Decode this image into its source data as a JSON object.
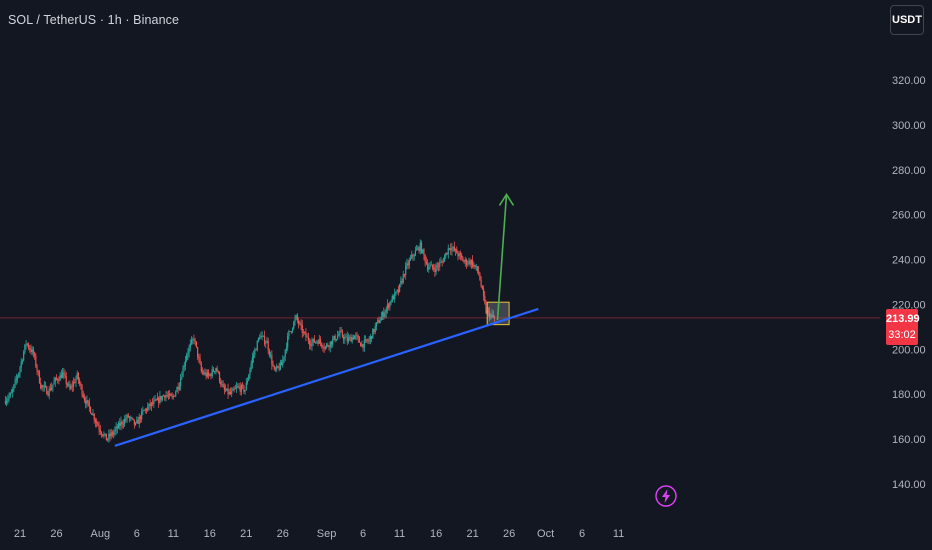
{
  "header": {
    "title": "SOL / TetherUS · 1h · Binance"
  },
  "toolbar": {
    "currency_label": "USDT"
  },
  "colors": {
    "background": "#131722",
    "candle_up": "#26a69a",
    "candle_down": "#ef5350",
    "trendline": "#2962ff",
    "arrow": "#4caf50",
    "zone_border": "#e8c33b",
    "zone_fill": "#9598a1",
    "price_line": "#f23645",
    "lightning": "#e040fb"
  },
  "chart_data": {
    "type": "candlestick",
    "symbol": "SOL / TetherUS",
    "interval": "1h",
    "exchange": "Binance",
    "ylim": [
      125,
      340
    ],
    "y_ticks": [
      "140.00",
      "160.00",
      "180.00",
      "200.00",
      "220.00",
      "240.00",
      "260.00",
      "280.00",
      "300.00",
      "320.00"
    ],
    "x_ticks": [
      {
        "label": "21",
        "date": "2025-07-21"
      },
      {
        "label": "26",
        "date": "2025-07-26"
      },
      {
        "label": "Aug",
        "date": "2025-08-01"
      },
      {
        "label": "6",
        "date": "2025-08-06"
      },
      {
        "label": "11",
        "date": "2025-08-11"
      },
      {
        "label": "16",
        "date": "2025-08-16"
      },
      {
        "label": "21",
        "date": "2025-08-21"
      },
      {
        "label": "26",
        "date": "2025-08-26"
      },
      {
        "label": "Sep",
        "date": "2025-09-01"
      },
      {
        "label": "6",
        "date": "2025-09-06"
      },
      {
        "label": "11",
        "date": "2025-09-11"
      },
      {
        "label": "16",
        "date": "2025-09-16"
      },
      {
        "label": "21",
        "date": "2025-09-21"
      },
      {
        "label": "26",
        "date": "2025-09-26"
      },
      {
        "label": "Oct",
        "date": "2025-10-01"
      },
      {
        "label": "6",
        "date": "2025-10-06"
      },
      {
        "label": "11",
        "date": "2025-10-11"
      }
    ],
    "price_path": [
      [
        "2025-07-19",
        177
      ],
      [
        "2025-07-20",
        180
      ],
      [
        "2025-07-21",
        190
      ],
      [
        "2025-07-22",
        203
      ],
      [
        "2025-07-23",
        198
      ],
      [
        "2025-07-24",
        184
      ],
      [
        "2025-07-25",
        181
      ],
      [
        "2025-07-26",
        186
      ],
      [
        "2025-07-27",
        189
      ],
      [
        "2025-07-28",
        182
      ],
      [
        "2025-07-29",
        188
      ],
      [
        "2025-07-30",
        178
      ],
      [
        "2025-07-31",
        172
      ],
      [
        "2025-08-01",
        165
      ],
      [
        "2025-08-02",
        160
      ],
      [
        "2025-08-03",
        163
      ],
      [
        "2025-08-04",
        167
      ],
      [
        "2025-08-05",
        170
      ],
      [
        "2025-08-06",
        166
      ],
      [
        "2025-08-07",
        172
      ],
      [
        "2025-08-08",
        175
      ],
      [
        "2025-08-09",
        177
      ],
      [
        "2025-08-10",
        180
      ],
      [
        "2025-08-11",
        178
      ],
      [
        "2025-08-12",
        185
      ],
      [
        "2025-08-13",
        198
      ],
      [
        "2025-08-14",
        205
      ],
      [
        "2025-08-15",
        190
      ],
      [
        "2025-08-16",
        188
      ],
      [
        "2025-08-17",
        192
      ],
      [
        "2025-08-18",
        182
      ],
      [
        "2025-08-19",
        180
      ],
      [
        "2025-08-20",
        183
      ],
      [
        "2025-08-21",
        182
      ],
      [
        "2025-08-22",
        196
      ],
      [
        "2025-08-23",
        206
      ],
      [
        "2025-08-24",
        203
      ],
      [
        "2025-08-25",
        190
      ],
      [
        "2025-08-26",
        193
      ],
      [
        "2025-08-27",
        207
      ],
      [
        "2025-08-28",
        214
      ],
      [
        "2025-08-29",
        207
      ],
      [
        "2025-08-30",
        203
      ],
      [
        "2025-08-31",
        204
      ],
      [
        "2025-09-01",
        201
      ],
      [
        "2025-09-02",
        204
      ],
      [
        "2025-09-03",
        207
      ],
      [
        "2025-09-04",
        204
      ],
      [
        "2025-09-05",
        206
      ],
      [
        "2025-09-06",
        202
      ],
      [
        "2025-09-07",
        204
      ],
      [
        "2025-09-08",
        211
      ],
      [
        "2025-09-09",
        216
      ],
      [
        "2025-09-10",
        222
      ],
      [
        "2025-09-11",
        226
      ],
      [
        "2025-09-12",
        236
      ],
      [
        "2025-09-13",
        242
      ],
      [
        "2025-09-14",
        246
      ],
      [
        "2025-09-15",
        237
      ],
      [
        "2025-09-16",
        236
      ],
      [
        "2025-09-17",
        239
      ],
      [
        "2025-09-18",
        246
      ],
      [
        "2025-09-19",
        243
      ],
      [
        "2025-09-20",
        239
      ],
      [
        "2025-09-21",
        239
      ],
      [
        "2025-09-22",
        234
      ],
      [
        "2025-09-23",
        217
      ],
      [
        "2025-09-24",
        213.99
      ]
    ],
    "last_price": "213.99",
    "countdown": "33:02",
    "annotations": {
      "trendline": {
        "start": [
          "2025-08-03",
          157
        ],
        "end": [
          "2025-09-30",
          218
        ]
      },
      "support_zone": {
        "x0": "2025-09-23",
        "x1": "2025-09-26",
        "y0": 211,
        "y1": 221
      },
      "target_arrow": {
        "from": [
          "2025-09-24",
          213
        ],
        "to": [
          "2025-09-24",
          269
        ]
      }
    },
    "grid": false,
    "legend": "none"
  }
}
